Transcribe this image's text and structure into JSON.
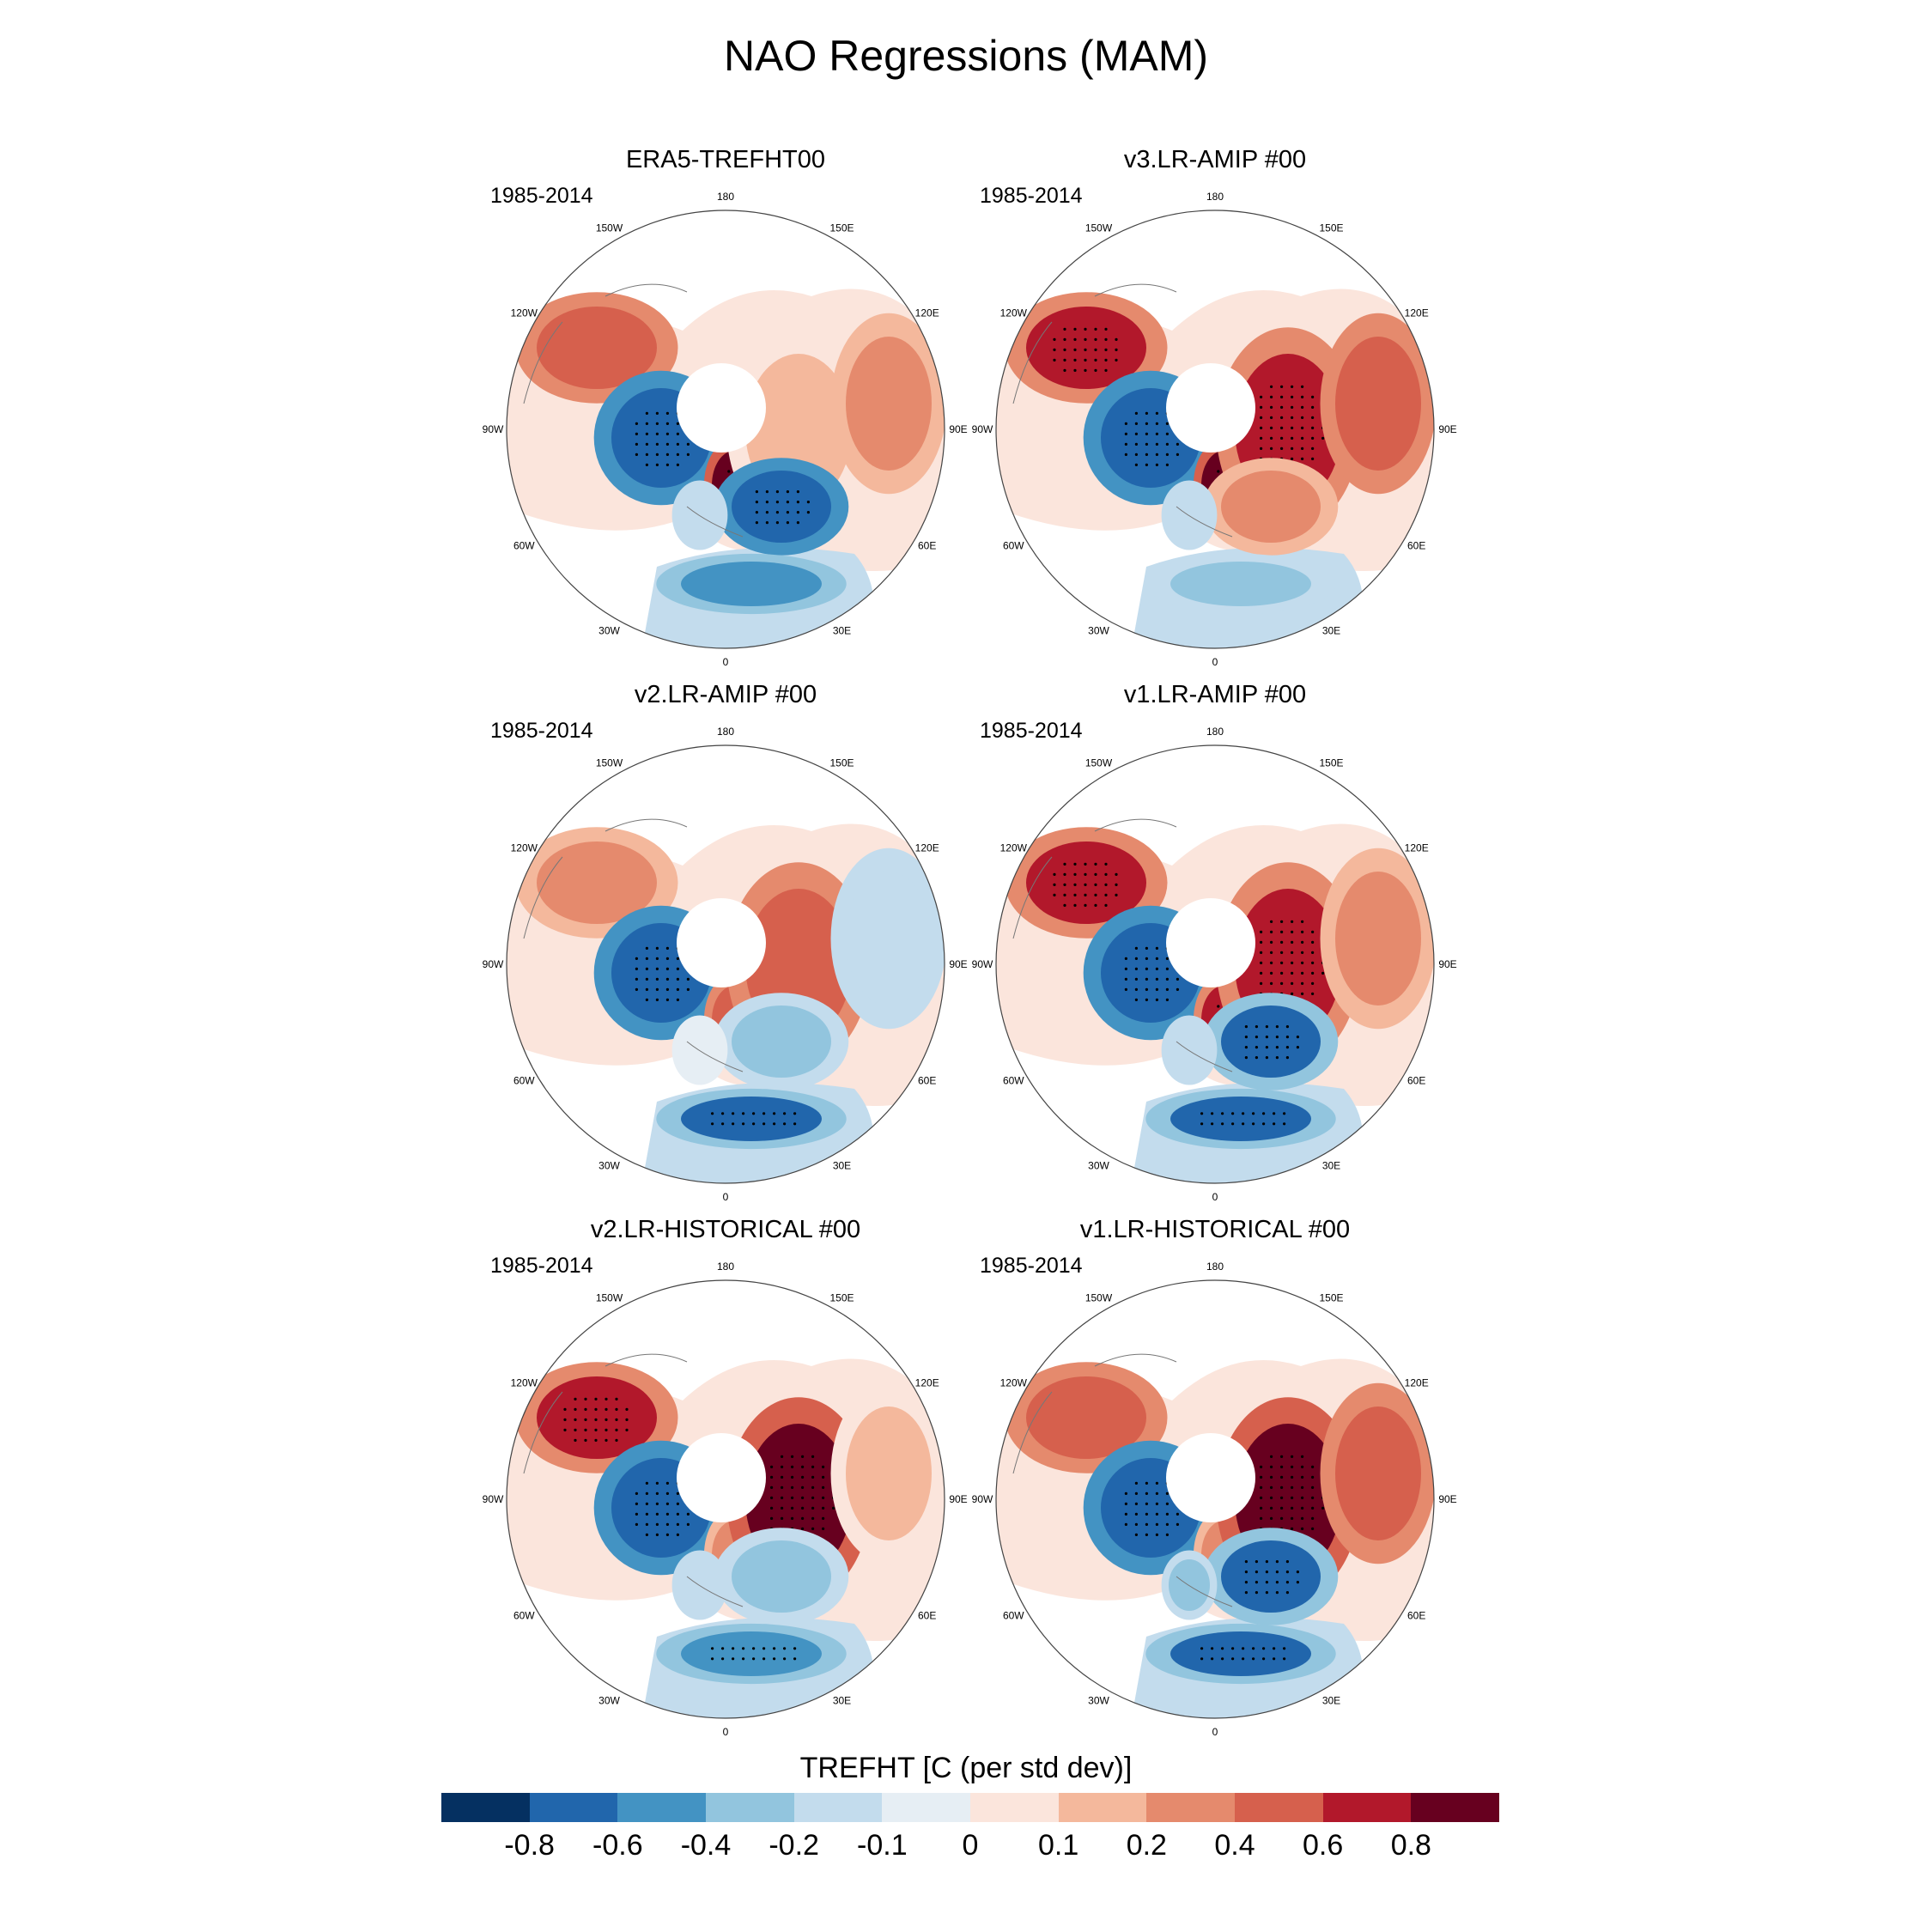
{
  "title": "NAO Regressions (MAM)",
  "period": "1985-2014",
  "lon_labels": [
    "180",
    "150E",
    "120E",
    "90E",
    "60E",
    "30E",
    "0",
    "30W",
    "60W",
    "90W",
    "120W",
    "150W"
  ],
  "panels": [
    {
      "title": "ERA5-TREFHT00",
      "period": "1985-2014",
      "pattern": {
        "canada": 0.5,
        "hudson": -0.8,
        "scandinavia": 0.8,
        "siberia": 0.1,
        "east_europe": -0.8,
        "east_asia": 0.2,
        "mediterranean": -0.5,
        "greenland_sea": -0.2
      }
    },
    {
      "title": "v3.LR-AMIP  #00",
      "period": "1985-2014",
      "pattern": {
        "canada": 0.7,
        "hudson": -0.8,
        "scandinavia": 0.8,
        "siberia": 0.6,
        "east_europe": 0.3,
        "east_asia": 0.4,
        "mediterranean": -0.3,
        "greenland_sea": -0.2
      }
    },
    {
      "title": "v2.LR-AMIP  #00",
      "period": "1985-2014",
      "pattern": {
        "canada": 0.3,
        "hudson": -0.8,
        "scandinavia": 0.4,
        "siberia": 0.4,
        "east_europe": -0.3,
        "east_asia": -0.2,
        "mediterranean": -0.7,
        "greenland_sea": -0.1
      }
    },
    {
      "title": "v1.LR-AMIP  #00",
      "period": "1985-2014",
      "pattern": {
        "canada": 0.6,
        "hudson": -0.8,
        "scandinavia": 0.6,
        "siberia": 0.6,
        "east_europe": -0.7,
        "east_asia": 0.3,
        "mediterranean": -0.7,
        "greenland_sea": -0.2
      }
    },
    {
      "title": "v2.LR-HISTORICAL  #00",
      "period": "1985-2014",
      "pattern": {
        "canada": 0.6,
        "hudson": -0.8,
        "scandinavia": 0.3,
        "siberia": 0.8,
        "east_europe": -0.3,
        "east_asia": 0.1,
        "mediterranean": -0.6,
        "greenland_sea": -0.2
      }
    },
    {
      "title": "v1.LR-HISTORICAL  #00",
      "period": "1985-2014",
      "pattern": {
        "canada": 0.5,
        "hudson": -0.8,
        "scandinavia": 0.2,
        "siberia": 0.8,
        "east_europe": -0.7,
        "east_asia": 0.5,
        "mediterranean": -0.7,
        "greenland_sea": -0.3
      }
    }
  ],
  "colorbar": {
    "title": "TREFHT [C (per std dev)]",
    "labels": [
      "-0.8",
      "-0.6",
      "-0.4",
      "-0.2",
      "-0.1",
      "0",
      "0.1",
      "0.2",
      "0.4",
      "0.6",
      "0.8"
    ],
    "levels": [
      -0.8,
      -0.6,
      -0.4,
      -0.2,
      -0.1,
      0,
      0.1,
      0.2,
      0.4,
      0.6,
      0.8
    ],
    "colors": [
      "#053061",
      "#2166ac",
      "#4393c3",
      "#92c5de",
      "#c3dced",
      "#e6eef4",
      "#fbe5dc",
      "#f4b89c",
      "#e58a6d",
      "#d6604d",
      "#b2182b",
      "#67001f"
    ]
  }
}
